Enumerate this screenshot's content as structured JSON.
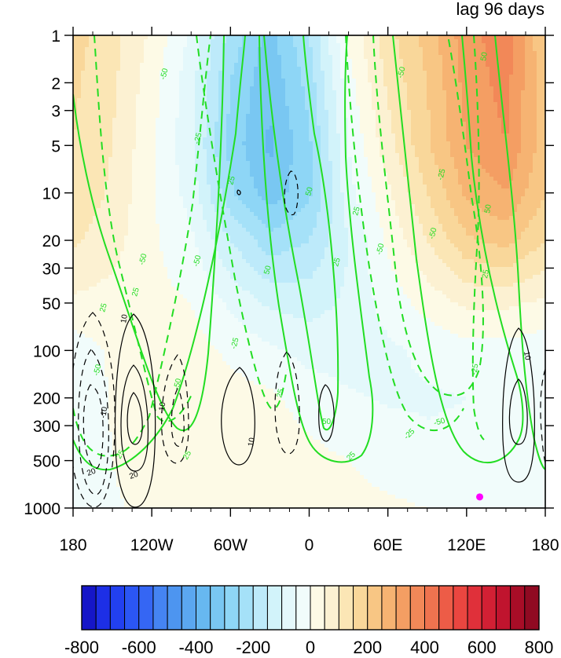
{
  "title": "lag 96 days",
  "colors": {
    "green": "#22dd22",
    "black": "#000000",
    "marker": "#ff00ff"
  },
  "chart_data": {
    "type": "heatmap",
    "title": "lag 96 days",
    "xlabel": "",
    "ylabel": "",
    "x_axis": {
      "range": [
        -180,
        180
      ],
      "ticks": [
        -180,
        -120,
        -60,
        0,
        60,
        120,
        180
      ],
      "tick_labels": [
        "180",
        "120W",
        "60W",
        "0",
        "60E",
        "120E",
        "180"
      ]
    },
    "y_axis": {
      "scale": "log",
      "reversed": true,
      "range": [
        1,
        1000
      ],
      "ticks": [
        1,
        2,
        3,
        5,
        10,
        20,
        30,
        50,
        100,
        200,
        300,
        500,
        1000
      ],
      "tick_labels": [
        "1",
        "2",
        "3",
        "5",
        "10",
        "20",
        "30",
        "50",
        "100",
        "200",
        "300",
        "500",
        "1000"
      ]
    },
    "grid": false,
    "colorbar": {
      "placement": "bottom",
      "levels": [
        -800,
        -750,
        -700,
        -650,
        -600,
        -550,
        -500,
        -450,
        -400,
        -350,
        -300,
        -250,
        -200,
        -150,
        -100,
        -50,
        0,
        50,
        100,
        150,
        200,
        250,
        300,
        350,
        400,
        450,
        500,
        550,
        600,
        650,
        700,
        750,
        800
      ],
      "tick_values": [
        -800,
        -600,
        -400,
        -200,
        0,
        200,
        400,
        600,
        800
      ],
      "tick_labels": [
        "-800",
        "-600",
        "-400",
        "-200",
        "0",
        "200",
        "400",
        "600",
        "800"
      ],
      "colors": [
        "#1616c8",
        "#1d2fe6",
        "#2240f0",
        "#2b56f4",
        "#3566f4",
        "#4584f2",
        "#4d95f0",
        "#5ba7f0",
        "#67b8f0",
        "#79c7f2",
        "#8ed6f6",
        "#a5e1f8",
        "#bdeafa",
        "#d2f3fa",
        "#e4f8fb",
        "#f1fcfb",
        "#fdfae6",
        "#fcf1d2",
        "#fbe6b5",
        "#f9d79a",
        "#f8c684",
        "#f6b372",
        "#f49e63",
        "#f28858",
        "#ef734f",
        "#ed5c47",
        "#ea4640",
        "#e0303a",
        "#d22034",
        "#c0142e",
        "#a80d27",
        "#900a22"
      ]
    },
    "shaded_field": {
      "description_values_at_nodes": true,
      "x": [
        -180,
        -150,
        -120,
        -90,
        -60,
        -30,
        0,
        30,
        60,
        90,
        120,
        150,
        180
      ],
      "p": [
        1,
        2,
        5,
        10,
        20,
        50,
        100,
        200,
        500,
        1000
      ],
      "values": [
        [
          170,
          120,
          40,
          -60,
          -220,
          -320,
          -200,
          10,
          130,
          220,
          330,
          380,
          200
        ],
        [
          160,
          110,
          20,
          -80,
          -250,
          -340,
          -230,
          -20,
          110,
          200,
          320,
          370,
          210
        ],
        [
          150,
          100,
          10,
          -90,
          -270,
          -360,
          -260,
          -50,
          80,
          190,
          300,
          350,
          220
        ],
        [
          140,
          90,
          5,
          -70,
          -240,
          -330,
          -260,
          -70,
          40,
          150,
          260,
          300,
          200
        ],
        [
          110,
          70,
          10,
          -40,
          -150,
          -230,
          -200,
          -100,
          10,
          100,
          190,
          220,
          150
        ],
        [
          40,
          30,
          15,
          0,
          -60,
          -110,
          -120,
          -90,
          -30,
          20,
          60,
          60,
          40
        ],
        [
          -30,
          10,
          25,
          20,
          -10,
          -40,
          -70,
          -70,
          -60,
          -40,
          -20,
          -20,
          -30
        ],
        [
          -50,
          5,
          30,
          30,
          20,
          10,
          -20,
          -45,
          -55,
          -55,
          -50,
          -45,
          -50
        ],
        [
          -40,
          0,
          25,
          30,
          30,
          25,
          15,
          0,
          -20,
          -40,
          -40,
          -40,
          -40
        ],
        [
          -30,
          -5,
          10,
          20,
          20,
          20,
          20,
          15,
          10,
          0,
          -10,
          -20,
          -30
        ]
      ]
    },
    "green_contours": {
      "interval": 25,
      "labels_shown": [
        "-50",
        "-25",
        "25",
        "50"
      ],
      "negative_dashed": true
    },
    "black_contours": {
      "interval": 10,
      "labels_shown": [
        "-10",
        "10",
        "-20",
        "20"
      ],
      "negative_dashed": true
    },
    "marker": {
      "lon": 130,
      "p": 850
    }
  }
}
